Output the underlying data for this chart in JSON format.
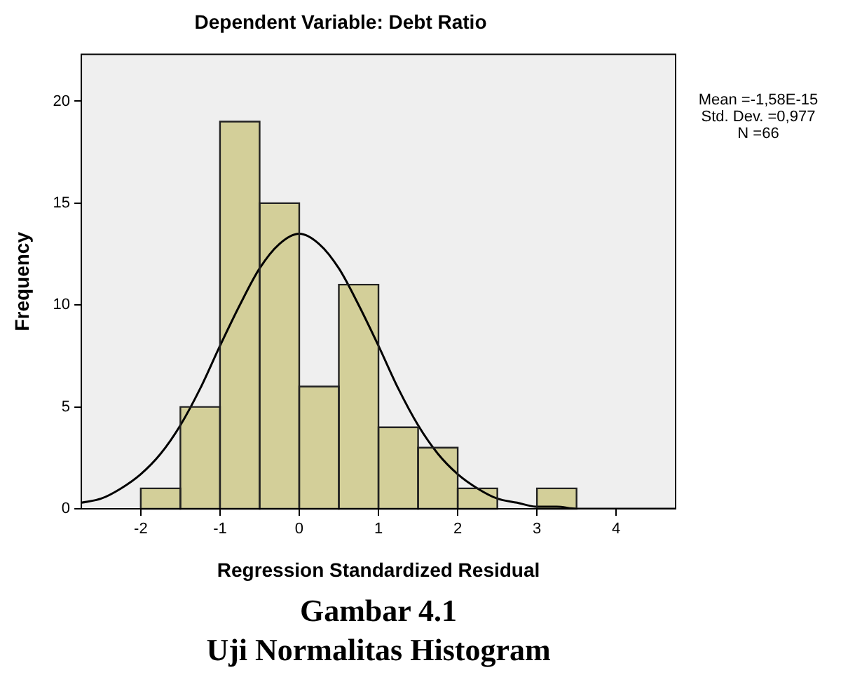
{
  "chart_data": {
    "type": "histogram",
    "title": "Dependent Variable: Debt Ratio",
    "xlabel": "Regression Standardized Residual",
    "ylabel": "Frequency",
    "bins": [
      -2,
      -1.5,
      -1,
      -0.5,
      0,
      0.5,
      1,
      1.5,
      2,
      2.5,
      3,
      3.5
    ],
    "values": [
      1,
      5,
      19,
      15,
      6,
      11,
      4,
      3,
      1,
      0,
      1
    ],
    "color": "#d3cf99",
    "series": [
      {
        "type": "line",
        "x": [
          -2.75,
          -2.5,
          -2.25,
          -2,
          -1.75,
          -1.5,
          -1.25,
          -1,
          -0.75,
          -0.5,
          -0.25,
          0,
          0.25,
          0.5,
          0.75,
          1,
          1.25,
          1.5,
          1.75,
          2,
          2.25,
          2.5,
          2.75,
          3,
          3.25,
          3.5,
          3.75,
          4,
          4.25,
          4.5,
          4.75
        ],
        "values": [
          0.3,
          0.5,
          1,
          1.7,
          2.7,
          4.1,
          5.9,
          8,
          10,
          11.8,
          13,
          13.5,
          13,
          11.8,
          10,
          8,
          5.9,
          4.1,
          2.7,
          1.7,
          1,
          0.5,
          0.3,
          0.1,
          0.1,
          0,
          0,
          0,
          0,
          0,
          0
        ],
        "color": "#000000",
        "marker": "none"
      }
    ],
    "xlim": [
      -2.75,
      4.75
    ],
    "xticks": [
      -2,
      -1,
      0,
      1,
      2,
      3,
      4
    ],
    "ylim": [
      0,
      22.3
    ],
    "yticks": [
      0,
      5,
      10,
      15,
      20
    ],
    "grid": false,
    "legend": false,
    "annotations": [
      "Mean =-1,58E-15",
      "Std. Dev. =0,977",
      "N =66",
      "Gambar 4.1",
      "Uji Normalitas Histogram"
    ]
  }
}
